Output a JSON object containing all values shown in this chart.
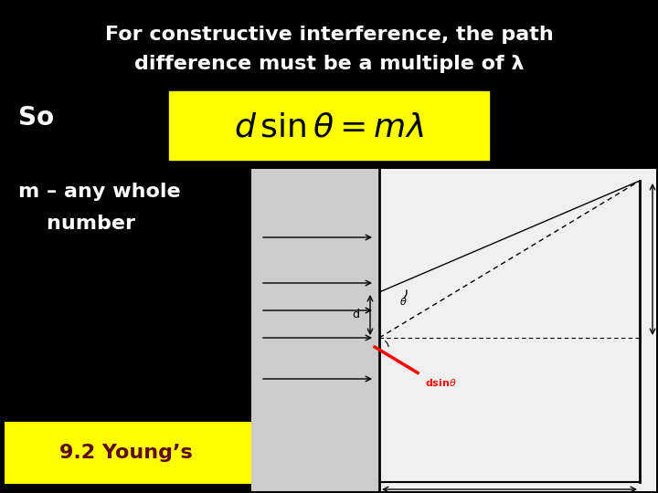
{
  "bg_color": "#000000",
  "title_line1": "For constructive interference, the path",
  "title_line2": "difference must be a multiple of λ",
  "so_text": "So",
  "formula_bg": "#ffff00",
  "m_text_line1": "m – any whole",
  "m_text_line2": "    number",
  "footer_text": "9.2 Young’s",
  "footer_bg": "#ffff00",
  "footer_color": "#5c0a14",
  "text_color": "#ffffff",
  "diagram_bg": "#e8e8e8",
  "title_fontsize": 16,
  "so_fontsize": 20,
  "m_fontsize": 16,
  "footer_fontsize": 16
}
